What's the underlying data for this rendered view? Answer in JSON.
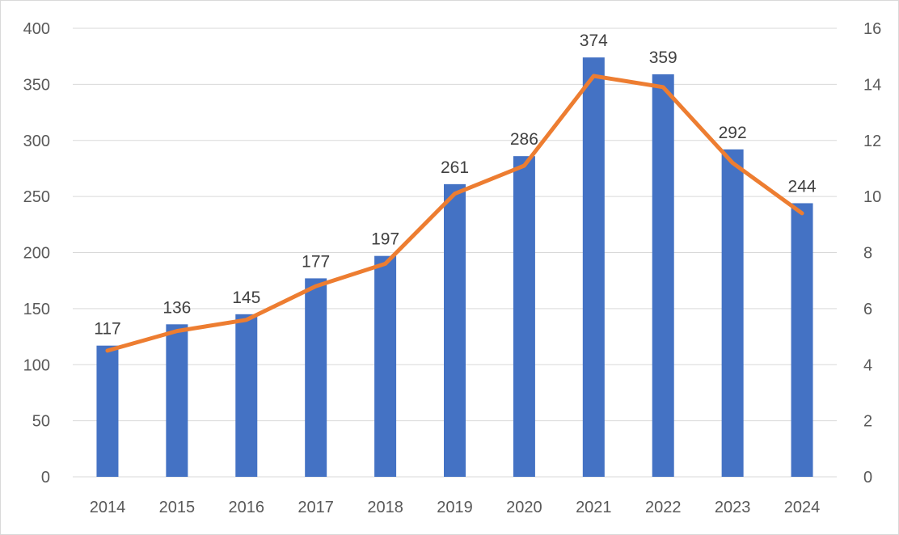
{
  "chart_data": {
    "type": "bar",
    "categories": [
      "2014",
      "2015",
      "2016",
      "2017",
      "2018",
      "2019",
      "2020",
      "2021",
      "2022",
      "2023",
      "2024"
    ],
    "series": [
      {
        "type": "bar",
        "axis": "left",
        "values": [
          117,
          136,
          145,
          177,
          197,
          261,
          286,
          374,
          359,
          292,
          244
        ],
        "data_labels": [
          "117",
          "136",
          "145",
          "177",
          "197",
          "261",
          "286",
          "374",
          "359",
          "292",
          "244"
        ]
      },
      {
        "type": "line",
        "axis": "right",
        "values": [
          4.5,
          5.2,
          5.6,
          6.8,
          7.6,
          10.1,
          11.1,
          14.3,
          13.9,
          11.2,
          9.4
        ]
      }
    ],
    "ylim": [
      0,
      400
    ],
    "y_ticks": [
      "0",
      "50",
      "100",
      "150",
      "200",
      "250",
      "300",
      "350",
      "400"
    ],
    "y2lim": [
      0,
      16
    ],
    "y2_ticks": [
      "0",
      "2",
      "4",
      "6",
      "8",
      "10",
      "12",
      "14",
      "16"
    ],
    "grid": true,
    "colors": {
      "bar": "#4472c4",
      "line": "#ed7d31",
      "grid": "#d9d9d9"
    }
  }
}
